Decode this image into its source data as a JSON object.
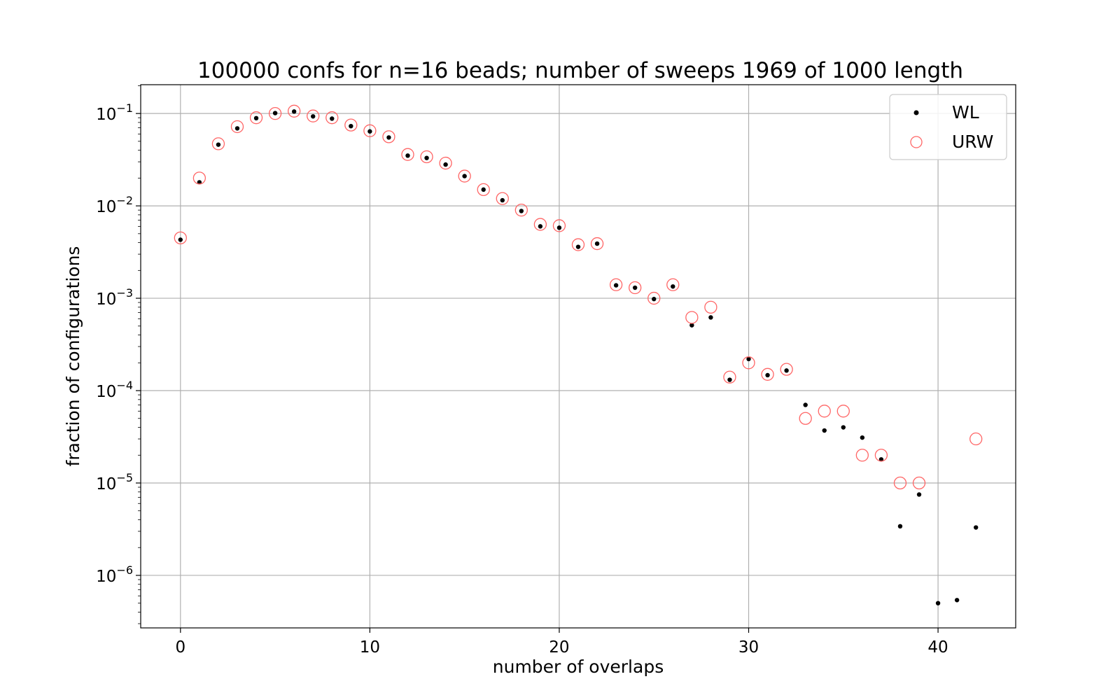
{
  "chart_data": {
    "type": "scatter",
    "title": "100000 confs for n=16 beads; number of sweeps 1969 of 1000 length",
    "xlabel": "number of overlaps",
    "ylabel": "fraction of configurations",
    "yscale": "log",
    "xlim": [
      -2.1,
      44.1
    ],
    "ylim": [
      2.7e-07,
      0.205
    ],
    "grid": true,
    "legend_position": "top-right",
    "x_ticks": [
      {
        "value": 0,
        "label": "0"
      },
      {
        "value": 10,
        "label": "10"
      },
      {
        "value": 20,
        "label": "20"
      },
      {
        "value": 30,
        "label": "30"
      },
      {
        "value": 40,
        "label": "40"
      }
    ],
    "y_ticks": [
      {
        "value": 0.1,
        "base": "10",
        "exp": "−1"
      },
      {
        "value": 0.01,
        "base": "10",
        "exp": "−2"
      },
      {
        "value": 0.001,
        "base": "10",
        "exp": "−3"
      },
      {
        "value": 0.0001,
        "base": "10",
        "exp": "−4"
      },
      {
        "value": 1e-05,
        "base": "10",
        "exp": "−5"
      },
      {
        "value": 1e-06,
        "base": "10",
        "exp": "−6"
      }
    ],
    "series": [
      {
        "name": "WL",
        "marker": "dot",
        "color": "#000000",
        "x": [
          0,
          1,
          2,
          3,
          4,
          5,
          6,
          7,
          8,
          9,
          10,
          11,
          12,
          13,
          14,
          15,
          16,
          17,
          18,
          19,
          20,
          21,
          22,
          23,
          24,
          25,
          26,
          27,
          28,
          29,
          30,
          31,
          32,
          33,
          34,
          35,
          36,
          37,
          38,
          39,
          40,
          41,
          42
        ],
        "y": [
          0.0043,
          0.018,
          0.046,
          0.069,
          0.089,
          0.101,
          0.105,
          0.093,
          0.088,
          0.073,
          0.064,
          0.055,
          0.035,
          0.033,
          0.028,
          0.021,
          0.015,
          0.0115,
          0.0088,
          0.006,
          0.0058,
          0.0036,
          0.0039,
          0.00138,
          0.0013,
          0.00098,
          0.00134,
          0.00051,
          0.00062,
          0.000131,
          0.00022,
          0.000147,
          0.000165,
          7e-05,
          3.7e-05,
          4e-05,
          3.1e-05,
          1.8e-05,
          3.4e-06,
          7.5e-06,
          5e-07,
          5.4e-07,
          3.3e-06
        ]
      },
      {
        "name": "URW",
        "marker": "circle",
        "color": "#ff6666",
        "x": [
          0,
          1,
          2,
          3,
          4,
          5,
          6,
          7,
          8,
          9,
          10,
          11,
          12,
          13,
          14,
          15,
          16,
          17,
          18,
          19,
          20,
          21,
          22,
          23,
          24,
          25,
          26,
          27,
          28,
          29,
          30,
          31,
          32,
          33,
          34,
          35,
          36,
          37,
          38,
          39,
          42
        ],
        "y": [
          0.0045,
          0.02,
          0.047,
          0.072,
          0.09,
          0.1,
          0.106,
          0.094,
          0.09,
          0.075,
          0.065,
          0.056,
          0.036,
          0.034,
          0.029,
          0.021,
          0.015,
          0.012,
          0.009,
          0.0063,
          0.0061,
          0.0038,
          0.0039,
          0.0014,
          0.0013,
          0.001,
          0.0014,
          0.00062,
          0.0008,
          0.00014,
          0.0002,
          0.00015,
          0.00017,
          5e-05,
          6e-05,
          6e-05,
          2e-05,
          2e-05,
          1e-05,
          1e-05,
          3e-05
        ]
      }
    ]
  }
}
